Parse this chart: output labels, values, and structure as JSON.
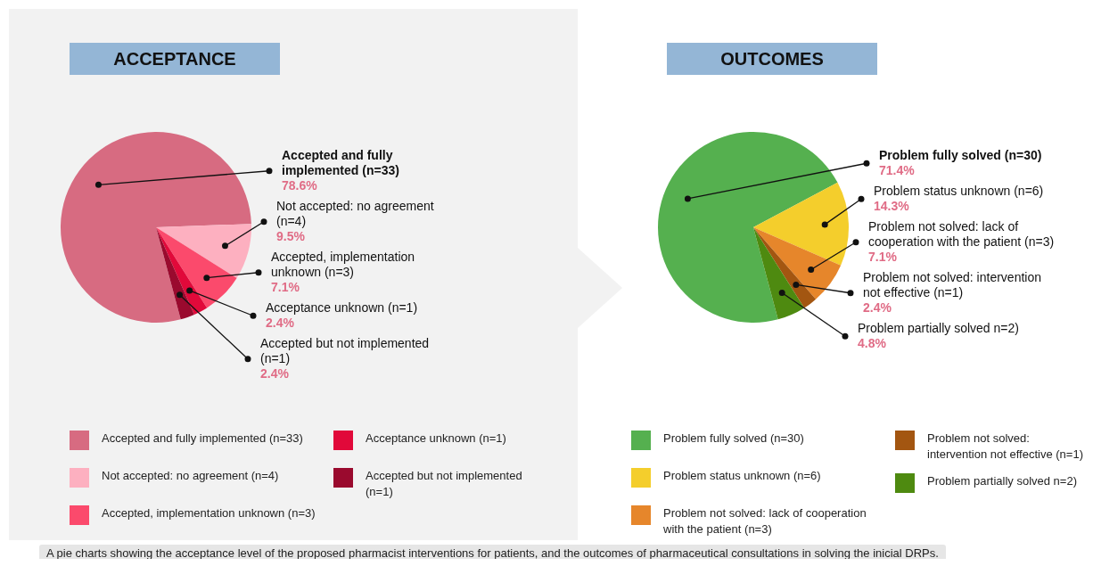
{
  "chart_data": [
    {
      "type": "pie",
      "title": "ACCEPTANCE",
      "categories": [
        "Accepted and fully implemented (n=33)",
        "Not accepted: no agreement (n=4)",
        "Accepted, implementation unknown (n=3)",
        "Acceptance unknown (n=1)",
        "Accepted but not implemented (n=1)"
      ],
      "values": [
        78.6,
        9.5,
        7.1,
        2.4,
        2.4
      ],
      "value_labels": [
        "78.6%",
        "9.5%",
        "7.1%",
        "2.4%",
        "2.4%"
      ],
      "colors": [
        "#d76b81",
        "#fdb0c0",
        "#fb4a6c",
        "#e1093a",
        "#9a0a2e"
      ],
      "legend": "bottom",
      "annotations": [
        "A pie charts showing the acceptance level of the proposed pharmacist interventions for patients, and the outcomes of pharmaceutical consultations in solving the inicial DRPs."
      ]
    },
    {
      "type": "pie",
      "title": "OUTCOMES",
      "categories": [
        "Problem fully solved (n=30)",
        "Problem status unknown (n=6)",
        "Problem not solved: lack of cooperation with the patient (n=3)",
        "Problem not solved: intervention not effective (n=1)",
        "Problem partially solved n=2)"
      ],
      "values": [
        71.4,
        14.3,
        7.1,
        2.4,
        4.8
      ],
      "value_labels": [
        "71.4%",
        "14.3%",
        "7.1%",
        "2.4%",
        "4.8%"
      ],
      "colors": [
        "#55b04f",
        "#f4ce2c",
        "#e6862b",
        "#a35611",
        "#4e8a10"
      ],
      "legend": "bottom"
    }
  ]
}
